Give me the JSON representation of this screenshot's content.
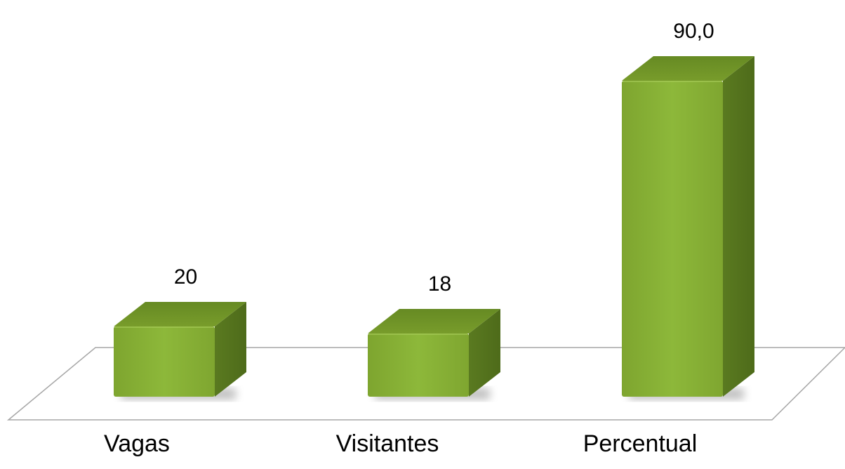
{
  "chart_data": {
    "type": "bar",
    "style": "3d-column",
    "categories": [
      "Vagas",
      "Visitantes",
      "Percentual"
    ],
    "values": [
      20,
      18,
      90
    ],
    "value_labels": [
      "20",
      "18",
      "90,0"
    ],
    "title": "",
    "xlabel": "",
    "ylabel": "",
    "ylim": [
      0,
      100
    ],
    "grid": false,
    "legend": "none",
    "colors": {
      "front": "#88b035",
      "top": "#6f9227",
      "side": "#55721d",
      "floor_stroke": "#a6a6a6"
    }
  }
}
